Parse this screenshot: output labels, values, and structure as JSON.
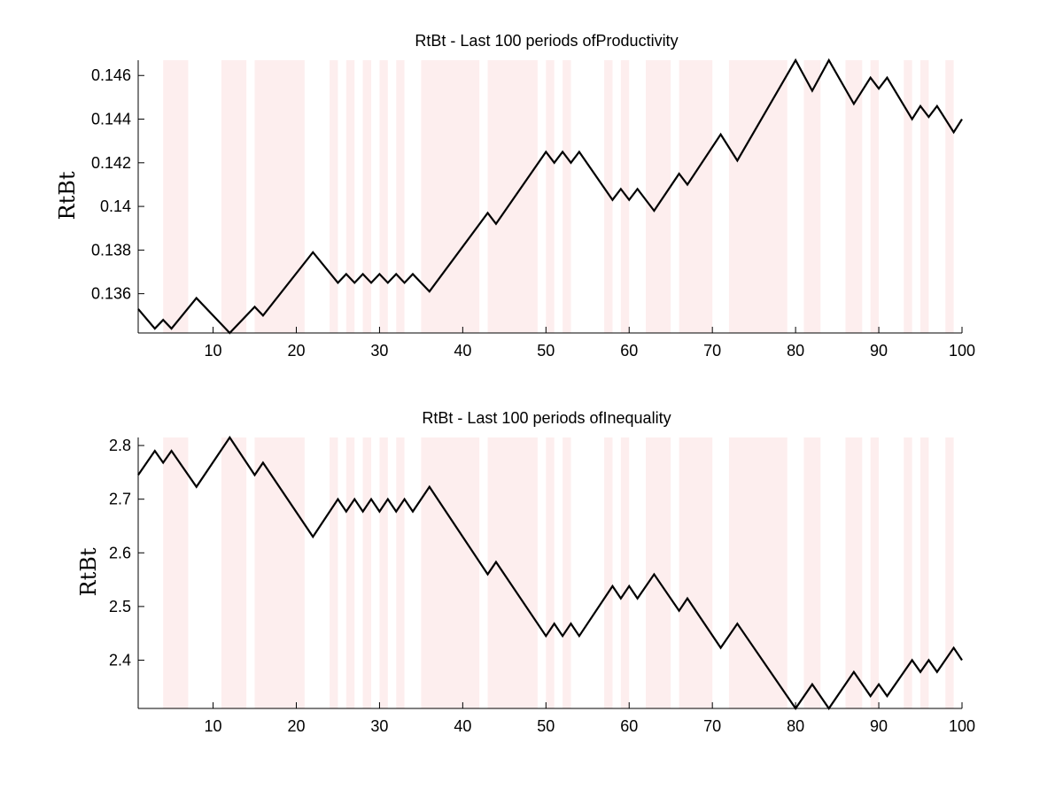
{
  "colors": {
    "shade": "#fdeeee",
    "line": "#000000",
    "axis": "#000000"
  },
  "chart_data": [
    {
      "type": "line",
      "title": "RtBt - Last 100 periods ofProductivity",
      "xlabel": "",
      "ylabel": "RtBt",
      "xlim": [
        1,
        100
      ],
      "ylim": [
        0.1342,
        0.1467
      ],
      "xticks": [
        10,
        20,
        30,
        40,
        50,
        60,
        70,
        80,
        90,
        100
      ],
      "xtick_labels": [
        "10",
        "20",
        "30",
        "40",
        "50",
        "60",
        "70",
        "80",
        "90",
        "100"
      ],
      "yticks": [
        0.136,
        0.138,
        0.14,
        0.142,
        0.144,
        0.146
      ],
      "ytick_labels": [
        "0.136",
        "0.138",
        "0.14",
        "0.142",
        "0.144",
        "0.146"
      ],
      "grid": false,
      "shaded_periods": [
        [
          4,
          7
        ],
        [
          11,
          14
        ],
        [
          15,
          21
        ],
        [
          24,
          25
        ],
        [
          26,
          27
        ],
        [
          28,
          29
        ],
        [
          30,
          31
        ],
        [
          32,
          33
        ],
        [
          35,
          42
        ],
        [
          43,
          49
        ],
        [
          50,
          51
        ],
        [
          52,
          53
        ],
        [
          57,
          58
        ],
        [
          59,
          60
        ],
        [
          62,
          65
        ],
        [
          66,
          70
        ],
        [
          72,
          79
        ],
        [
          81,
          83
        ],
        [
          86,
          88
        ],
        [
          89,
          90
        ],
        [
          93,
          94
        ],
        [
          95,
          96
        ],
        [
          98,
          99
        ]
      ],
      "x": [
        1,
        3,
        4,
        5,
        8,
        12,
        15,
        16,
        22,
        25,
        26,
        27,
        28,
        29,
        30,
        31,
        32,
        33,
        34,
        36,
        43,
        44,
        50,
        51,
        52,
        53,
        54,
        58,
        59,
        60,
        61,
        63,
        66,
        67,
        71,
        73,
        80,
        82,
        84,
        87,
        89,
        90,
        91,
        94,
        95,
        96,
        97,
        99,
        100
      ],
      "values": [
        0.1353,
        0.1344,
        0.1348,
        0.1344,
        0.1358,
        0.1342,
        0.1354,
        0.135,
        0.1379,
        0.1365,
        0.1369,
        0.1365,
        0.1369,
        0.1365,
        0.1369,
        0.1365,
        0.1369,
        0.1365,
        0.1369,
        0.1361,
        0.1397,
        0.1392,
        0.1425,
        0.142,
        0.1425,
        0.142,
        0.1425,
        0.1403,
        0.1408,
        0.1403,
        0.1408,
        0.1398,
        0.1415,
        0.141,
        0.1433,
        0.1421,
        0.1467,
        0.1453,
        0.1467,
        0.1447,
        0.1459,
        0.1454,
        0.1459,
        0.144,
        0.1446,
        0.1441,
        0.1446,
        0.1434,
        0.144
      ]
    },
    {
      "type": "line",
      "title": "RtBt - Last 100 periods ofInequality",
      "xlabel": "",
      "ylabel": "RtBt",
      "xlim": [
        1,
        100
      ],
      "ylim": [
        2.31,
        2.815
      ],
      "xticks": [
        10,
        20,
        30,
        40,
        50,
        60,
        70,
        80,
        90,
        100
      ],
      "xtick_labels": [
        "10",
        "20",
        "30",
        "40",
        "50",
        "60",
        "70",
        "80",
        "90",
        "100"
      ],
      "yticks": [
        2.4,
        2.5,
        2.6,
        2.7,
        2.8
      ],
      "ytick_labels": [
        "2.4",
        "2.5",
        "2.6",
        "2.7",
        "2.8"
      ],
      "grid": false,
      "shaded_periods": [
        [
          4,
          7
        ],
        [
          11,
          14
        ],
        [
          15,
          21
        ],
        [
          24,
          25
        ],
        [
          26,
          27
        ],
        [
          28,
          29
        ],
        [
          30,
          31
        ],
        [
          32,
          33
        ],
        [
          35,
          42
        ],
        [
          43,
          49
        ],
        [
          50,
          51
        ],
        [
          52,
          53
        ],
        [
          57,
          58
        ],
        [
          59,
          60
        ],
        [
          62,
          65
        ],
        [
          66,
          70
        ],
        [
          72,
          79
        ],
        [
          81,
          83
        ],
        [
          86,
          88
        ],
        [
          89,
          90
        ],
        [
          93,
          94
        ],
        [
          95,
          96
        ],
        [
          98,
          99
        ]
      ],
      "x": [
        1,
        3,
        4,
        5,
        8,
        12,
        15,
        16,
        22,
        25,
        26,
        27,
        28,
        29,
        30,
        31,
        32,
        33,
        34,
        36,
        43,
        44,
        50,
        51,
        52,
        53,
        54,
        58,
        59,
        60,
        61,
        63,
        66,
        67,
        71,
        73,
        80,
        82,
        84,
        87,
        89,
        90,
        91,
        94,
        95,
        96,
        97,
        99,
        100
      ],
      "values": [
        2.745,
        2.79,
        2.768,
        2.79,
        2.723,
        2.815,
        2.745,
        2.768,
        2.63,
        2.7,
        2.677,
        2.7,
        2.677,
        2.7,
        2.677,
        2.7,
        2.677,
        2.7,
        2.677,
        2.723,
        2.56,
        2.583,
        2.445,
        2.468,
        2.445,
        2.468,
        2.445,
        2.538,
        2.515,
        2.538,
        2.515,
        2.56,
        2.492,
        2.515,
        2.423,
        2.468,
        2.31,
        2.355,
        2.31,
        2.378,
        2.333,
        2.355,
        2.333,
        2.4,
        2.378,
        2.4,
        2.378,
        2.423,
        2.4
      ]
    }
  ]
}
